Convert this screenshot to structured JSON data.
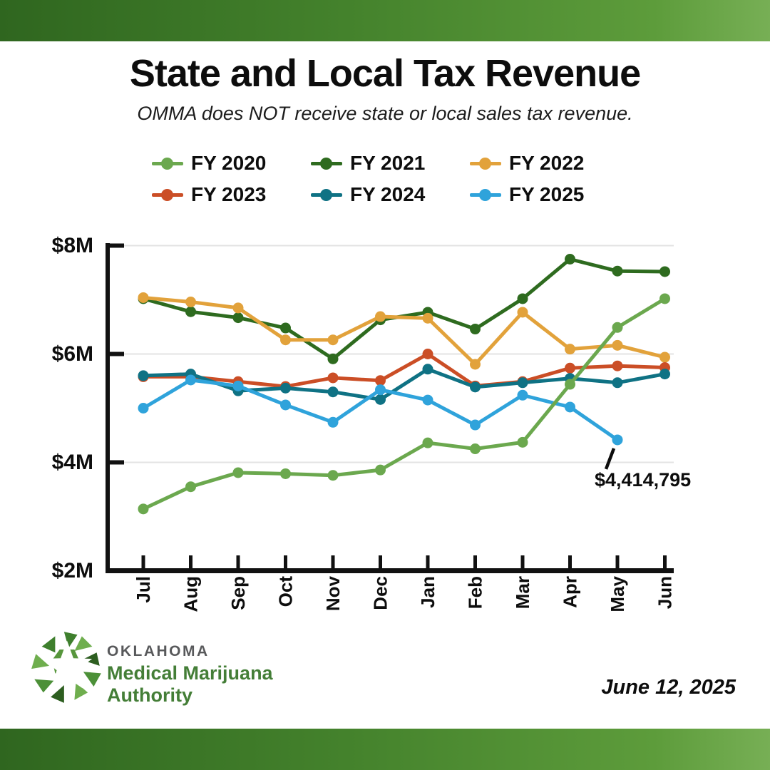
{
  "header": {
    "title": "State and Local Tax Revenue",
    "subtitle": "OMMA does NOT receive state or local sales tax revenue."
  },
  "chart_data": {
    "type": "line",
    "categories": [
      "Jul",
      "Aug",
      "Sep",
      "Oct",
      "Nov",
      "Dec",
      "Jan",
      "Feb",
      "Mar",
      "Apr",
      "May",
      "Jun"
    ],
    "series": [
      {
        "name": "FY 2020",
        "color": "#6BA84E",
        "values": [
          3.14,
          3.55,
          3.81,
          3.79,
          3.76,
          3.86,
          4.36,
          4.25,
          4.37,
          5.44,
          6.49,
          7.02
        ]
      },
      {
        "name": "FY 2021",
        "color": "#2E6B1F",
        "values": [
          7.02,
          6.78,
          6.67,
          6.48,
          5.91,
          6.63,
          6.77,
          6.46,
          7.02,
          7.75,
          7.53,
          7.52
        ]
      },
      {
        "name": "FY 2022",
        "color": "#E2A23B",
        "values": [
          7.04,
          6.96,
          6.85,
          6.26,
          6.26,
          6.69,
          6.66,
          5.81,
          6.77,
          6.09,
          6.16,
          5.94
        ]
      },
      {
        "name": "FY 2023",
        "color": "#CB4E26",
        "values": [
          5.58,
          5.58,
          5.49,
          5.4,
          5.56,
          5.51,
          6.0,
          5.41,
          5.49,
          5.74,
          5.78,
          5.75
        ]
      },
      {
        "name": "FY 2024",
        "color": "#0F7284",
        "values": [
          5.6,
          5.63,
          5.32,
          5.37,
          5.3,
          5.16,
          5.72,
          5.39,
          5.47,
          5.55,
          5.47,
          5.63
        ]
      },
      {
        "name": "FY 2025",
        "color": "#2FA3DB",
        "values": [
          5.0,
          5.52,
          5.41,
          5.06,
          4.74,
          5.34,
          5.15,
          4.69,
          5.24,
          5.02,
          4.414795,
          null
        ]
      }
    ],
    "title": "State and Local Tax Revenue",
    "xlabel": "",
    "ylabel": "",
    "y_tick_labels": [
      "$2M",
      "$4M",
      "$6M",
      "$8M"
    ],
    "ylim": [
      2,
      8
    ],
    "grid": "horizontal-only",
    "legend_position": "top",
    "annotation": {
      "text": "$4,414,795",
      "series": "FY 2025",
      "category": "May",
      "value_millions": 4.414795
    }
  },
  "footer": {
    "logo_line1": "OKLAHOMA",
    "logo_line2": "Medical Marijuana",
    "logo_line3": "Authority",
    "date": "June 12, 2025"
  },
  "colors": {
    "banner_gradient_left": "#2F661F",
    "banner_gradient_right": "#77AF55",
    "axis": "#111111",
    "gridline": "#E3E3E3",
    "logo_gray": "#58595B",
    "logo_green": "#447E37"
  }
}
